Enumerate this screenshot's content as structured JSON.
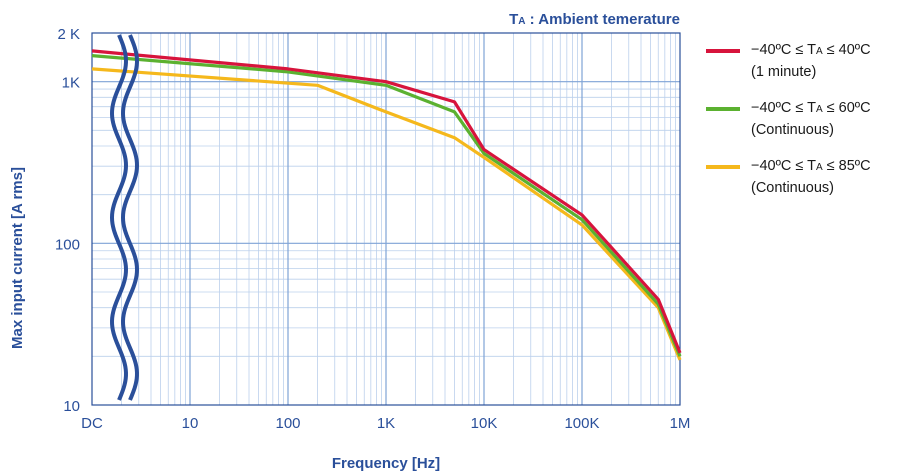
{
  "chart_data": {
    "type": "line",
    "annotation": {
      "prefix": "T",
      "sub": "A",
      "suffix": " : Ambient temerature"
    },
    "xlabel": "Frequency [Hz]",
    "ylabel": "Max input current [A rms]",
    "x_scale": "log",
    "y_scale": "log",
    "xlim": [
      1,
      1000000
    ],
    "ylim": [
      10,
      2000
    ],
    "grid": true,
    "legend_position": "right",
    "x_ticks": [
      {
        "value": 1,
        "label": "DC"
      },
      {
        "value": 10,
        "label": "10"
      },
      {
        "value": 100,
        "label": "100"
      },
      {
        "value": 1000,
        "label": "1K"
      },
      {
        "value": 10000,
        "label": "10K"
      },
      {
        "value": 100000,
        "label": "100K"
      },
      {
        "value": 1000000,
        "label": "1M"
      }
    ],
    "y_ticks": [
      {
        "value": 10,
        "label": "10"
      },
      {
        "value": 100,
        "label": "100"
      },
      {
        "value": 1000,
        "label": "1K"
      },
      {
        "value": 2000,
        "label": "2 K"
      }
    ],
    "axis_break": "wavy double line near DC",
    "series": [
      {
        "name": "−40ºC ≤ TA ≤ 40ºC",
        "name_parts": [
          "−40ºC ≤ T",
          "A",
          " ≤ 40ºC"
        ],
        "note": "(1 minute)",
        "color": "#d7143c",
        "x": [
          1,
          100,
          1000,
          5000,
          10000,
          100000,
          600000,
          1000000
        ],
        "y": [
          1550,
          1200,
          1000,
          750,
          380,
          150,
          45,
          21
        ]
      },
      {
        "name": "−40ºC ≤ TA ≤ 60ºC",
        "name_parts": [
          "−40ºC ≤ T",
          "A",
          " ≤ 60ºC"
        ],
        "note": "(Continuous)",
        "color": "#5bb130",
        "x": [
          1,
          100,
          1000,
          5000,
          10000,
          100000,
          600000,
          1000000
        ],
        "y": [
          1450,
          1150,
          950,
          650,
          360,
          140,
          42,
          20
        ]
      },
      {
        "name": "−40ºC ≤ TA ≤ 85ºC",
        "name_parts": [
          "−40ºC ≤ T",
          "A",
          " ≤ 85ºC"
        ],
        "note": "(Continuous)",
        "color": "#f5b81c",
        "x": [
          1,
          200,
          1000,
          5000,
          10000,
          100000,
          600000,
          1000000
        ],
        "y": [
          1200,
          950,
          650,
          450,
          340,
          130,
          40,
          19
        ]
      }
    ]
  }
}
